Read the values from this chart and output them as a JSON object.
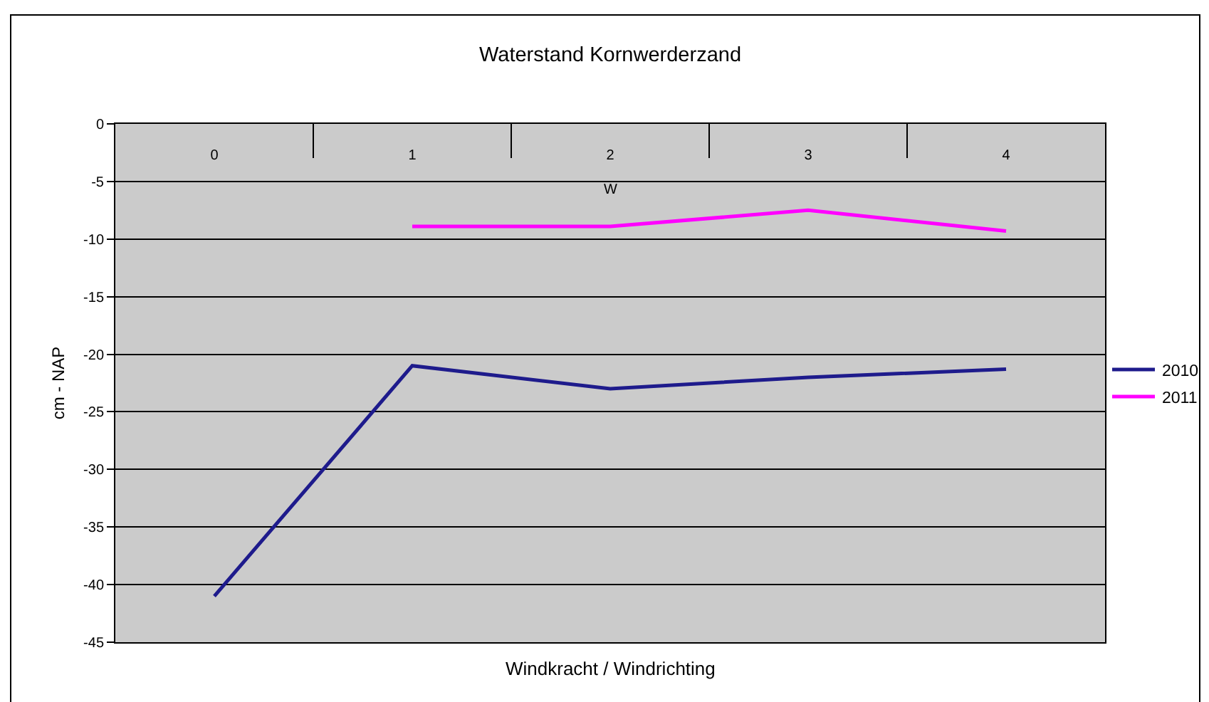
{
  "chart_data": {
    "type": "line",
    "title": "Waterstand Kornwerderzand",
    "xlabel": "Windkracht / Windrichting",
    "ylabel": "cm - NAP",
    "categories": [
      "0",
      "1",
      "2",
      "3",
      "4"
    ],
    "series": [
      {
        "name": "2010",
        "color": "#1e1b8c",
        "values": [
          -41,
          -21,
          -23,
          -22,
          -21.3
        ]
      },
      {
        "name": "2011",
        "color": "#ff00ff",
        "values": [
          null,
          -8.9,
          -8.9,
          -7.5,
          -9.3
        ]
      }
    ],
    "ylim": [
      -45,
      0
    ],
    "yticks": [
      0,
      -5,
      -10,
      -15,
      -20,
      -25,
      -30,
      -35,
      -40,
      -45
    ],
    "grid": "y",
    "legend": "right",
    "marker": "none",
    "line_style": "solid",
    "annotations": [
      "W"
    ]
  }
}
